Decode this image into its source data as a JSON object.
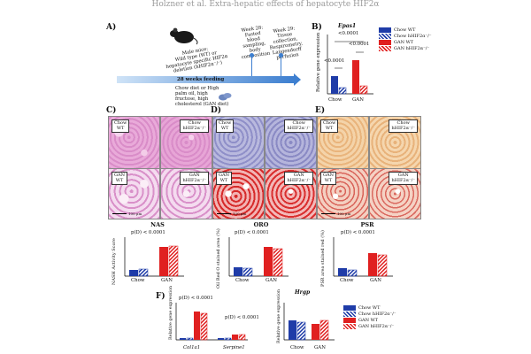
{
  "header": "Holzner et al. Extra-hepatic effects of hepatocyte HIF2α",
  "panelA": {
    "letter": "A)",
    "mice_text": [
      "Male mice:",
      "Wild type (WT) or",
      "hepatocyte specific HIF2α",
      "deletion (hHIF2α⁻/⁻)"
    ],
    "week28": [
      "Week 28:",
      "Fasted",
      "blood",
      "sampling, body",
      "composition"
    ],
    "week29": [
      "Week 29:",
      "Tissue",
      "collection,",
      "Respirometry,",
      "Langendorff",
      "perfusion"
    ],
    "bar_label": "28 weeks feeding",
    "diet_text": [
      "Chow diet or High",
      "palm oil, high",
      "fructose, high",
      "cholesterol (GAN diet)"
    ],
    "colors": {
      "bar": "#3d7fd0",
      "bar_light": "#cfe3f7",
      "mouse": "#1a1a1a",
      "pellet": "#6b86bf"
    }
  },
  "panelB": {
    "letter": "B)",
    "gene": "Epas1",
    "ylabel": "Relative gene expression",
    "sig": [
      "<0.0001",
      "<0.0001",
      "<0.0001"
    ],
    "legend": [
      "Chow WT",
      "Chow hHIF2α⁻/⁻",
      "GAN WT",
      "GAN hHIF2α⁻/⁻"
    ]
  },
  "panelsCDE": {
    "letters": [
      "C)",
      "D)",
      "E)"
    ],
    "tags": {
      "chow_wt": [
        "Chow",
        "WT"
      ],
      "chow_ko": [
        "Chow",
        "hHIF2α⁻/⁻"
      ],
      "gan_wt": [
        "GAN",
        "WT"
      ],
      "gan_ko": [
        "GAN",
        "hHIF2α⁻/⁻"
      ]
    },
    "scale_label": "100 μm"
  },
  "quant": [
    {
      "title": "NAS",
      "sig": "p(D) < 0.0001",
      "ylabel": "NASH Activity Score"
    },
    {
      "title": "ORO",
      "sig": "p(D) < 0.0001",
      "ylabel": "Oil Red O stained area (%)"
    },
    {
      "title": "PSR",
      "sig": "p(D) < 0.0001",
      "ylabel": "PSR area stained red (%)"
    }
  ],
  "xcats": [
    "Chow",
    "GAN"
  ],
  "panelF": {
    "letter": "F)",
    "ylabel": "Relative gene expression",
    "sig1": "p(D) < 0.0001",
    "sig2": "p(D) < 0.0001",
    "gene1": "Col1a1",
    "gene2": "Serpine1",
    "hrg_title": "Hrgp",
    "hrg_ylabel": "Relative gene expression",
    "legend": [
      "Chow WT",
      "Chow hHIF2α⁻/⁻",
      "GAN WT",
      "GAN hHIF2α⁻/⁻"
    ]
  },
  "chart_data": [
    {
      "type": "bar",
      "title": "Epas1",
      "categories": [
        "Chow",
        "GAN"
      ],
      "series": [
        {
          "name": "Chow WT",
          "values": [
            1.0,
            null
          ]
        },
        {
          "name": "Chow hHIF2α⁻/⁻",
          "values": [
            0.35,
            null
          ]
        },
        {
          "name": "GAN WT",
          "values": [
            null,
            1.9
          ]
        },
        {
          "name": "GAN hHIF2α⁻/⁻",
          "values": [
            null,
            0.5
          ]
        }
      ]
    },
    {
      "type": "bar",
      "title": "NAS",
      "categories": [
        "Chow",
        "GAN"
      ],
      "series": [
        {
          "name": "WT",
          "values": [
            1.1,
            6.0
          ]
        },
        {
          "name": "hHIF2α⁻/⁻",
          "values": [
            1.2,
            6.3
          ]
        }
      ]
    },
    {
      "type": "bar",
      "title": "ORO",
      "categories": [
        "Chow",
        "GAN"
      ],
      "series": [
        {
          "name": "WT",
          "values": [
            8,
            30
          ]
        },
        {
          "name": "hHIF2α⁻/⁻",
          "values": [
            7,
            28
          ]
        }
      ]
    },
    {
      "type": "bar",
      "title": "PSR",
      "categories": [
        "Chow",
        "GAN"
      ],
      "series": [
        {
          "name": "WT",
          "values": [
            4,
            12
          ]
        },
        {
          "name": "hHIF2α⁻/⁻",
          "values": [
            3,
            11
          ]
        }
      ]
    },
    {
      "type": "bar",
      "title": "F",
      "categories": [
        "Col1a1",
        "Serpine1"
      ],
      "series": [
        {
          "name": "Chow WT",
          "values": [
            1,
            1
          ]
        },
        {
          "name": "Chow hHIF2α⁻/⁻",
          "values": [
            1,
            1
          ]
        },
        {
          "name": "GAN WT",
          "values": [
            12,
            2
          ]
        },
        {
          "name": "GAN hHIF2α⁻/⁻",
          "values": [
            11,
            2
          ]
        }
      ]
    },
    {
      "type": "bar",
      "title": "Hrgp",
      "categories": [
        "Chow",
        "GAN"
      ],
      "series": [
        {
          "name": "WT",
          "values": [
            1.0,
            0.8
          ]
        },
        {
          "name": "hHIF2α⁻/⁻",
          "values": [
            0.9,
            1.0
          ]
        }
      ]
    }
  ]
}
